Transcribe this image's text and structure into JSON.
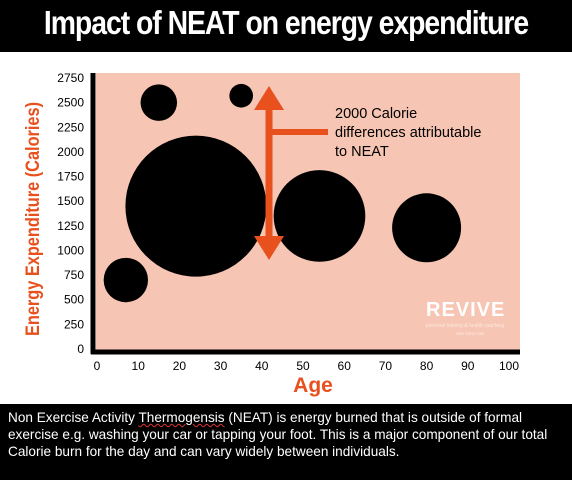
{
  "title": "Impact of NEAT on energy expenditure",
  "caption": {
    "before": "Non Exercise Activity ",
    "flagged_word": "Thermogensis",
    "after": " (NEAT) is energy burned that is outside of formal exercise e.g. washing your car or tapping your foot. This is a major component of our total Calorie burn for the day and can vary widely between individuals."
  },
  "annotation": [
    "2000 Calorie",
    "differences attributable",
    "to NEAT"
  ],
  "logo": {
    "text": "REVIVE",
    "tagline": "personal training & health coaching",
    "sub": "with steve hall"
  },
  "colors": {
    "plot_bg": "#f7c5b3",
    "bubble": "#000000",
    "arrow": "#e8501e",
    "axis_label": "#e8501e",
    "caption_bg": "#000000"
  },
  "chart_data": {
    "type": "scatter",
    "title": "Impact of NEAT on energy expenditure",
    "xlabel": "Age",
    "ylabel": "Energy Expenditure (Calories)",
    "xlim": [
      0,
      100
    ],
    "ylim": [
      0,
      2750
    ],
    "xticks": [
      "0",
      "10",
      "20",
      "30",
      "40",
      "50",
      "60",
      "70",
      "80",
      "90",
      "100"
    ],
    "yticks": [
      "0",
      "250",
      "500",
      "750",
      "1000",
      "1250",
      "1500",
      "1750",
      "2000",
      "2250",
      "2500",
      "2750"
    ],
    "grid": false,
    "points": [
      {
        "x": 7,
        "y": 700,
        "size": 0.45
      },
      {
        "x": 15,
        "y": 2500,
        "size": 0.37
      },
      {
        "x": 24,
        "y": 1450,
        "size": 1.43
      },
      {
        "x": 35,
        "y": 2570,
        "size": 0.24
      },
      {
        "x": 54,
        "y": 1350,
        "size": 0.93
      },
      {
        "x": 80,
        "y": 1230,
        "size": 0.7
      }
    ]
  }
}
